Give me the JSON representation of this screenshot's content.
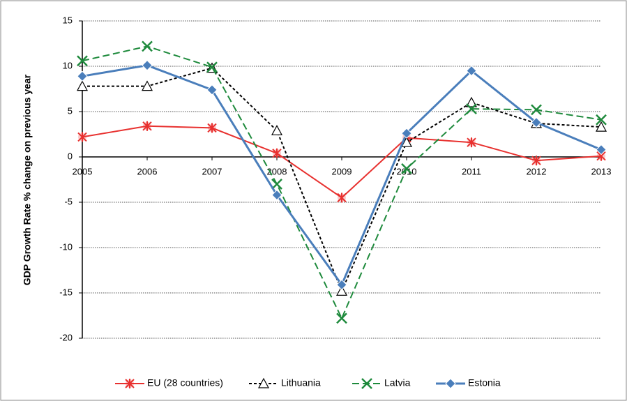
{
  "chart_data": {
    "type": "line",
    "y_label": "GDP Growth Rate % change on previous year",
    "categories": [
      "2005",
      "2006",
      "2007",
      "2008",
      "2009",
      "2010",
      "2011",
      "2012",
      "2013"
    ],
    "series": [
      {
        "name": "EU (28 countries)",
        "color": "#e8312f",
        "values": [
          2.2,
          3.4,
          3.2,
          0.4,
          -4.5,
          2.1,
          1.6,
          -0.4,
          0.1
        ]
      },
      {
        "name": "Lithuania",
        "color": "#000000",
        "values": [
          7.8,
          7.8,
          9.8,
          2.9,
          -14.8,
          1.6,
          6.0,
          3.7,
          3.3
        ]
      },
      {
        "name": "Latvia",
        "color": "#1e8a3c",
        "values": [
          10.6,
          12.2,
          9.9,
          -3.0,
          -17.8,
          -1.3,
          5.3,
          5.2,
          4.1
        ]
      },
      {
        "name": "Estonia",
        "color": "#4a7ebb",
        "values": [
          8.9,
          10.1,
          7.4,
          -4.2,
          -14.1,
          2.6,
          9.5,
          3.8,
          0.8
        ]
      }
    ],
    "ylim": [
      -20,
      15
    ],
    "yticks": [
      -20,
      -15,
      -10,
      -5,
      0,
      5,
      10,
      15
    ],
    "grid": true
  }
}
